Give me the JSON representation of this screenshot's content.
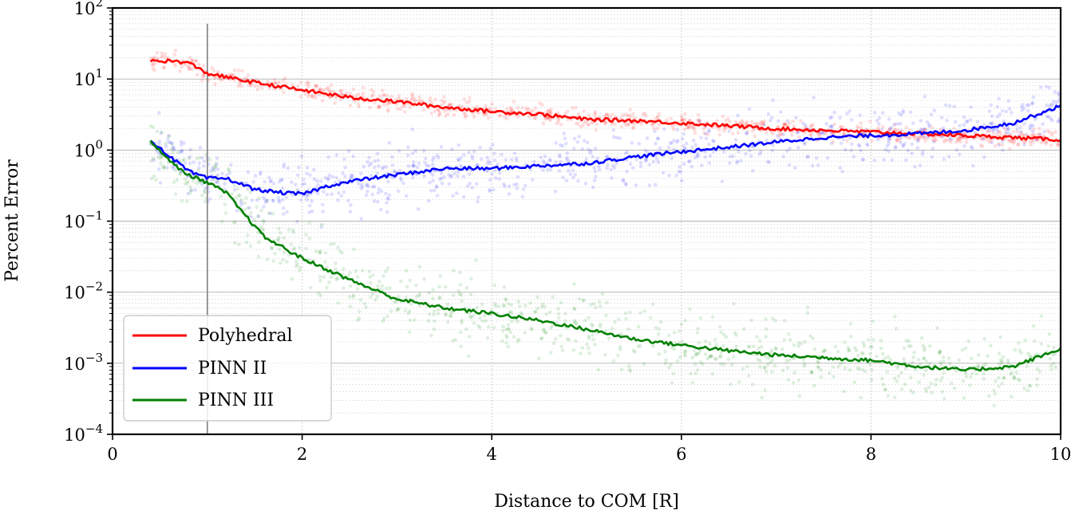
{
  "chart_data": {
    "type": "line",
    "xlabel": "Distance to COM [R]",
    "ylabel": "Percent Error",
    "xlim": [
      0,
      10
    ],
    "ylim": [
      0.0001,
      100
    ],
    "yscale": "log",
    "grid": true,
    "legend_position": "lower-left",
    "x_ticks": [
      {
        "value": 0,
        "label": "0"
      },
      {
        "value": 2,
        "label": "2"
      },
      {
        "value": 4,
        "label": "4"
      },
      {
        "value": 6,
        "label": "6"
      },
      {
        "value": 8,
        "label": "8"
      },
      {
        "value": 10,
        "label": "10"
      }
    ],
    "y_ticks": [
      {
        "value": 100,
        "base": "10",
        "exp": "2"
      },
      {
        "value": 10,
        "base": "10",
        "exp": "1"
      },
      {
        "value": 1,
        "base": "10",
        "exp": "0"
      },
      {
        "value": 0.1,
        "base": "10",
        "exp": "−1"
      },
      {
        "value": 0.01,
        "base": "10",
        "exp": "−2"
      },
      {
        "value": 0.001,
        "base": "10",
        "exp": "−3"
      },
      {
        "value": 0.0001,
        "base": "10",
        "exp": "−4"
      }
    ],
    "reference_line": {
      "x": 1,
      "y_range": [
        0.0001,
        60
      ]
    },
    "series": [
      {
        "name": "Polyhedral",
        "color": "#ff0000",
        "x": [
          0.4,
          0.6,
          0.8,
          1.0,
          1.3,
          1.6,
          2.0,
          2.5,
          3.0,
          3.5,
          4.0,
          4.5,
          5.0,
          5.5,
          6.0,
          6.5,
          7.0,
          7.5,
          8.0,
          8.5,
          9.0,
          9.5,
          10.0
        ],
        "values": [
          18,
          18,
          17,
          12,
          10,
          8.5,
          7,
          5.5,
          4.8,
          4.0,
          3.5,
          3.2,
          2.7,
          2.6,
          2.4,
          2.2,
          2.0,
          1.9,
          1.8,
          1.7,
          1.6,
          1.5,
          1.4
        ],
        "scatter_spread": 0.09
      },
      {
        "name": "PINN II",
        "color": "#0000ff",
        "x": [
          0.4,
          0.5,
          0.6,
          0.7,
          0.8,
          1.0,
          1.2,
          1.5,
          1.8,
          2.0,
          2.3,
          2.6,
          3.0,
          3.5,
          4.0,
          4.5,
          5.0,
          5.5,
          6.0,
          6.5,
          7.0,
          7.5,
          8.0,
          8.5,
          9.0,
          9.5,
          10.0
        ],
        "values": [
          1.3,
          1.1,
          0.8,
          0.65,
          0.5,
          0.4,
          0.4,
          0.28,
          0.25,
          0.24,
          0.32,
          0.38,
          0.45,
          0.55,
          0.55,
          0.6,
          0.65,
          0.8,
          0.95,
          1.1,
          1.3,
          1.5,
          1.6,
          1.7,
          1.9,
          2.4,
          4.2
        ],
        "scatter_spread": 0.3
      },
      {
        "name": "PINN III",
        "color": "#008000",
        "x": [
          0.4,
          0.5,
          0.6,
          0.7,
          0.8,
          1.0,
          1.2,
          1.4,
          1.6,
          2.0,
          2.5,
          3.0,
          3.5,
          4.0,
          4.5,
          5.0,
          5.5,
          6.0,
          6.5,
          7.0,
          7.5,
          8.0,
          8.5,
          9.0,
          9.5,
          10.0
        ],
        "values": [
          1.3,
          1.0,
          0.7,
          0.55,
          0.45,
          0.35,
          0.25,
          0.12,
          0.06,
          0.03,
          0.015,
          0.008,
          0.006,
          0.005,
          0.004,
          0.003,
          0.0022,
          0.0018,
          0.0015,
          0.0013,
          0.0012,
          0.0011,
          0.0009,
          0.0008,
          0.0009,
          0.0016
        ],
        "scatter_spread": 0.35
      }
    ]
  }
}
